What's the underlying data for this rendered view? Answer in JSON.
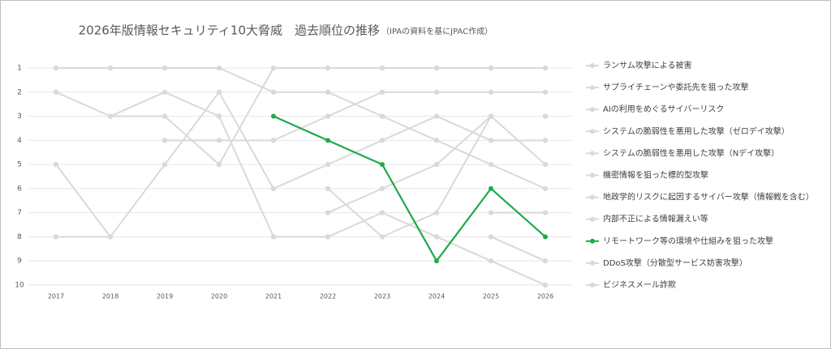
{
  "chart_data": {
    "type": "line",
    "title": "2026年版情報セキュリティ10大脅威　過去順位の推移",
    "subtitle": "（IPAの資料を基にJPAC作成）",
    "categories": [
      "2017",
      "2018",
      "2019",
      "2020",
      "2021",
      "2022",
      "2023",
      "2024",
      "2025",
      "2026"
    ],
    "ylim": [
      10,
      1
    ],
    "yticks": [
      1,
      2,
      3,
      4,
      5,
      6,
      7,
      8,
      9,
      10
    ],
    "grid": true,
    "legend": "right",
    "series": [
      {
        "name": "ランサム攻撃による被害",
        "color": "#d9d9d9",
        "values": [
          2,
          3,
          3,
          5,
          1,
          1,
          1,
          1,
          1,
          1
        ]
      },
      {
        "name": "サプライチェーンや委託先を狙った攻撃",
        "color": "#d9d9d9",
        "values": [
          null,
          null,
          4,
          4,
          4,
          3,
          2,
          2,
          2,
          2
        ]
      },
      {
        "name": "AIの利用をめぐるサイバーリスク",
        "color": "#d9d9d9",
        "values": [
          null,
          null,
          null,
          null,
          null,
          null,
          null,
          null,
          null,
          3
        ]
      },
      {
        "name": "システムの脆弱性を悪用した攻撃（ゼロデイ攻撃）",
        "color": "#d9d9d9",
        "values": [
          null,
          null,
          null,
          null,
          null,
          7,
          6,
          5,
          3,
          5
        ]
      },
      {
        "name": "システムの脆弱性を悪用した攻撃（Nデイ攻撃）",
        "color": "#d9d9d9",
        "values": [
          null,
          null,
          null,
          null,
          null,
          6,
          8,
          7,
          3,
          null
        ]
      },
      {
        "name": "機密情報を狙った標的型攻撃",
        "color": "#d9d9d9",
        "values": [
          1,
          1,
          1,
          1,
          2,
          2,
          3,
          4,
          5,
          6
        ]
      },
      {
        "name": "地政学的リスクに起因するサイバー攻撃（情報戦を含む）",
        "color": "#d9d9d9",
        "values": [
          null,
          null,
          null,
          null,
          null,
          null,
          null,
          null,
          7,
          7
        ]
      },
      {
        "name": "内部不正による情報漏えい等",
        "color": "#d9d9d9",
        "values": [
          8,
          8,
          5,
          2,
          6,
          5,
          4,
          3,
          4,
          4
        ]
      },
      {
        "name": "リモートワーク等の環境や仕組みを狙った攻撃",
        "color": "#1faa4b",
        "values": [
          null,
          null,
          null,
          null,
          3,
          4,
          5,
          9,
          6,
          8
        ]
      },
      {
        "name": "DDoS攻撃（分散型サービス妨害攻撃）",
        "color": "#d9d9d9",
        "values": [
          5,
          8,
          null,
          null,
          null,
          null,
          null,
          null,
          8,
          9
        ]
      },
      {
        "name": "ビジネスメール詐欺",
        "color": "#d9d9d9",
        "values": [
          null,
          3,
          2,
          3,
          8,
          8,
          7,
          8,
          9,
          10
        ]
      }
    ]
  }
}
